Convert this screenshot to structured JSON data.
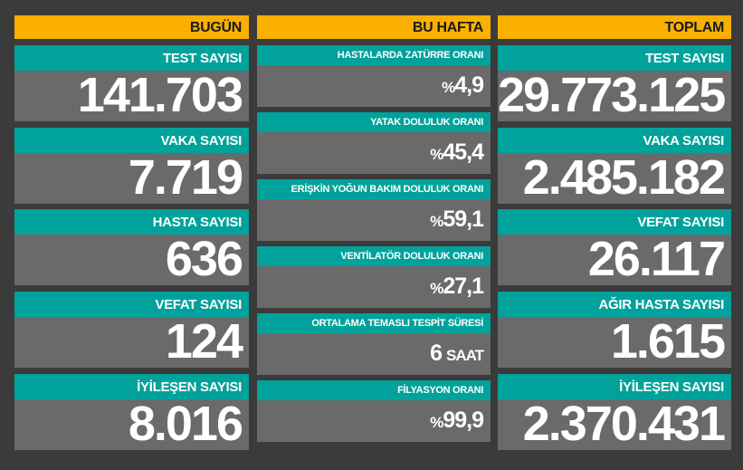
{
  "columns": [
    {
      "header": "BUGÜN",
      "cards": [
        {
          "label": "TEST SAYISI",
          "value": "141.703"
        },
        {
          "label": "VAKA SAYISI",
          "value": "7.719"
        },
        {
          "label": "HASTA SAYISI",
          "value": "636"
        },
        {
          "label": "VEFAT SAYISI",
          "value": "124"
        },
        {
          "label": "İYİLEŞEN SAYISI",
          "value": "8.016"
        }
      ]
    },
    {
      "header": "BU HAFTA",
      "cards": [
        {
          "label": "HASTALARDA ZATÜRRE ORANI",
          "prefix": "%",
          "value": "4,9"
        },
        {
          "label": "YATAK DOLULUK ORANI",
          "prefix": "%",
          "value": "45,4"
        },
        {
          "label": "ERİŞKİN YOĞUN BAKIM DOLULUK ORANI",
          "prefix": "%",
          "value": "59,1"
        },
        {
          "label": "VENTİLATÖR DOLULUK ORANI",
          "prefix": "%",
          "value": "27,1"
        },
        {
          "label": "ORTALAMA TEMASLI TESPİT SÜRESİ",
          "value": "6",
          "suffix": "SAAT"
        },
        {
          "label": "FİLYASYON ORANI",
          "prefix": "%",
          "value": "99,9"
        }
      ]
    },
    {
      "header": "TOPLAM",
      "cards": [
        {
          "label": "TEST SAYISI",
          "value": "29.773.125"
        },
        {
          "label": "VAKA SAYISI",
          "value": "2.485.182"
        },
        {
          "label": "VEFAT SAYISI",
          "value": "26.117"
        },
        {
          "label": "AĞIR HASTA SAYISI",
          "value": "1.615"
        },
        {
          "label": "İYİLEŞEN SAYISI",
          "value": "2.370.431"
        }
      ]
    }
  ]
}
